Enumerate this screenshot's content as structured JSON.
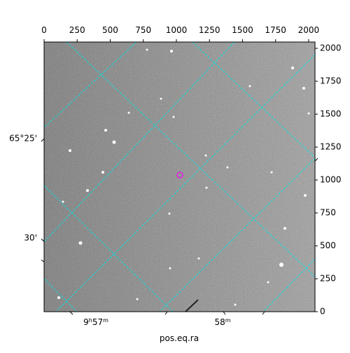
{
  "chart_data": {
    "type": "image",
    "xlabel": "pos.eq.ra",
    "xlim": [
      0,
      2048
    ],
    "xticks": [
      0,
      250,
      500,
      750,
      1000,
      1250,
      1500,
      1750,
      2000
    ],
    "ylim": [
      0,
      2048
    ],
    "yticks": [
      0,
      250,
      500,
      750,
      1000,
      1250,
      1500,
      1750,
      2000
    ],
    "ra_labels": [
      [
        "9",
        "h",
        "57",
        "m"
      ],
      [
        "58",
        "m"
      ]
    ],
    "dec_labels": [
      "65°25'",
      "30'"
    ]
  }
}
